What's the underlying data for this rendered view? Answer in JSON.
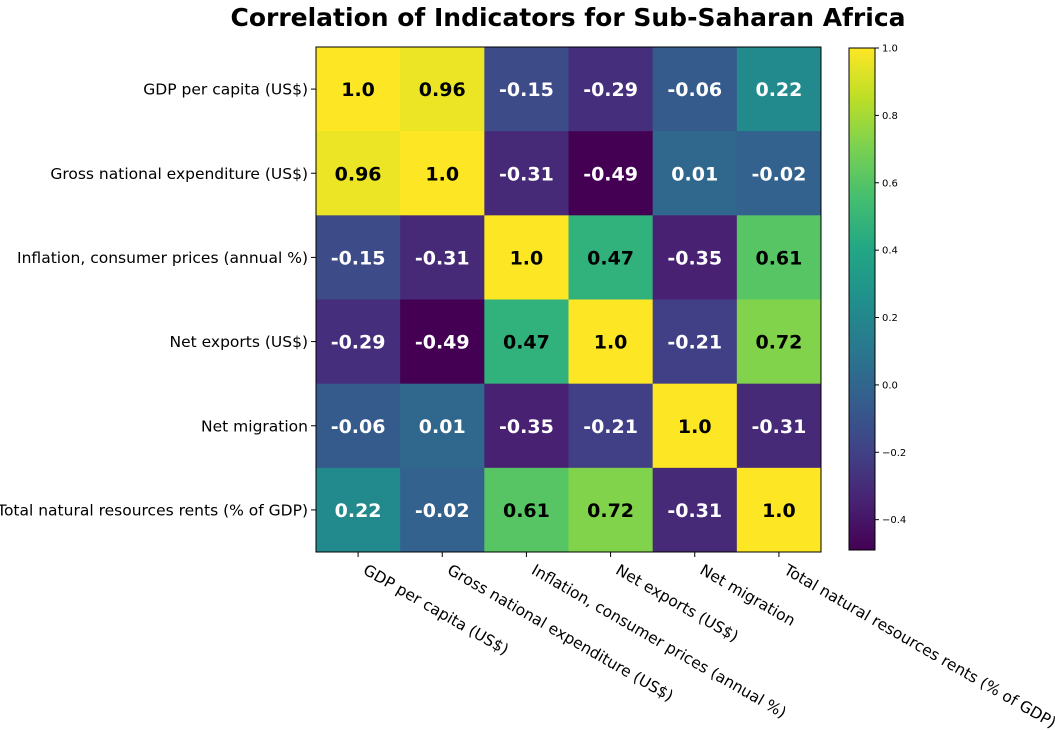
{
  "chart_data": {
    "type": "heatmap",
    "title": "Correlation of Indicators for Sub-Saharan Africa",
    "xlabel": "",
    "ylabel": "",
    "labels": [
      "GDP per capita (US$)",
      "Gross national expenditure (US$)",
      "Inflation, consumer prices (annual %)",
      "Net exports (US$)",
      "Net migration",
      "Total natural resources rents (% of GDP)"
    ],
    "values": [
      [
        1.0,
        0.96,
        -0.15,
        -0.29,
        -0.06,
        0.22
      ],
      [
        0.96,
        1.0,
        -0.31,
        -0.49,
        0.01,
        -0.02
      ],
      [
        -0.15,
        -0.31,
        1.0,
        0.47,
        -0.35,
        0.61
      ],
      [
        -0.29,
        -0.49,
        0.47,
        1.0,
        -0.21,
        0.72
      ],
      [
        -0.06,
        0.01,
        -0.35,
        -0.21,
        1.0,
        -0.31
      ],
      [
        0.22,
        -0.02,
        0.61,
        0.72,
        -0.31,
        1.0
      ]
    ],
    "cell_text": [
      [
        "1.0",
        "0.96",
        "-0.15",
        "-0.29",
        "-0.06",
        "0.22"
      ],
      [
        "0.96",
        "1.0",
        "-0.31",
        "-0.49",
        "0.01",
        "-0.02"
      ],
      [
        "-0.15",
        "-0.31",
        "1.0",
        "0.47",
        "-0.35",
        "0.61"
      ],
      [
        "-0.29",
        "-0.49",
        "0.47",
        "1.0",
        "-0.21",
        "0.72"
      ],
      [
        "-0.06",
        "0.01",
        "-0.35",
        "-0.21",
        "1.0",
        "-0.31"
      ],
      [
        "0.22",
        "-0.02",
        "0.61",
        "0.72",
        "-0.31",
        "1.0"
      ]
    ],
    "colormap": "viridis",
    "color_range": [
      -0.49,
      1.0
    ],
    "colorbar_ticks": [
      1.0,
      0.8,
      0.6,
      0.4,
      0.2,
      0.0,
      -0.2,
      -0.4
    ],
    "colorbar_tick_labels": [
      "1.0",
      "0.8",
      "0.6",
      "0.4",
      "0.2",
      "0.0",
      "−0.2",
      "−0.4"
    ],
    "text_colors": {
      "light_cells": "#000000",
      "dark_cells": "#ffffff"
    },
    "grid": false,
    "legend": "colorbar-right"
  }
}
